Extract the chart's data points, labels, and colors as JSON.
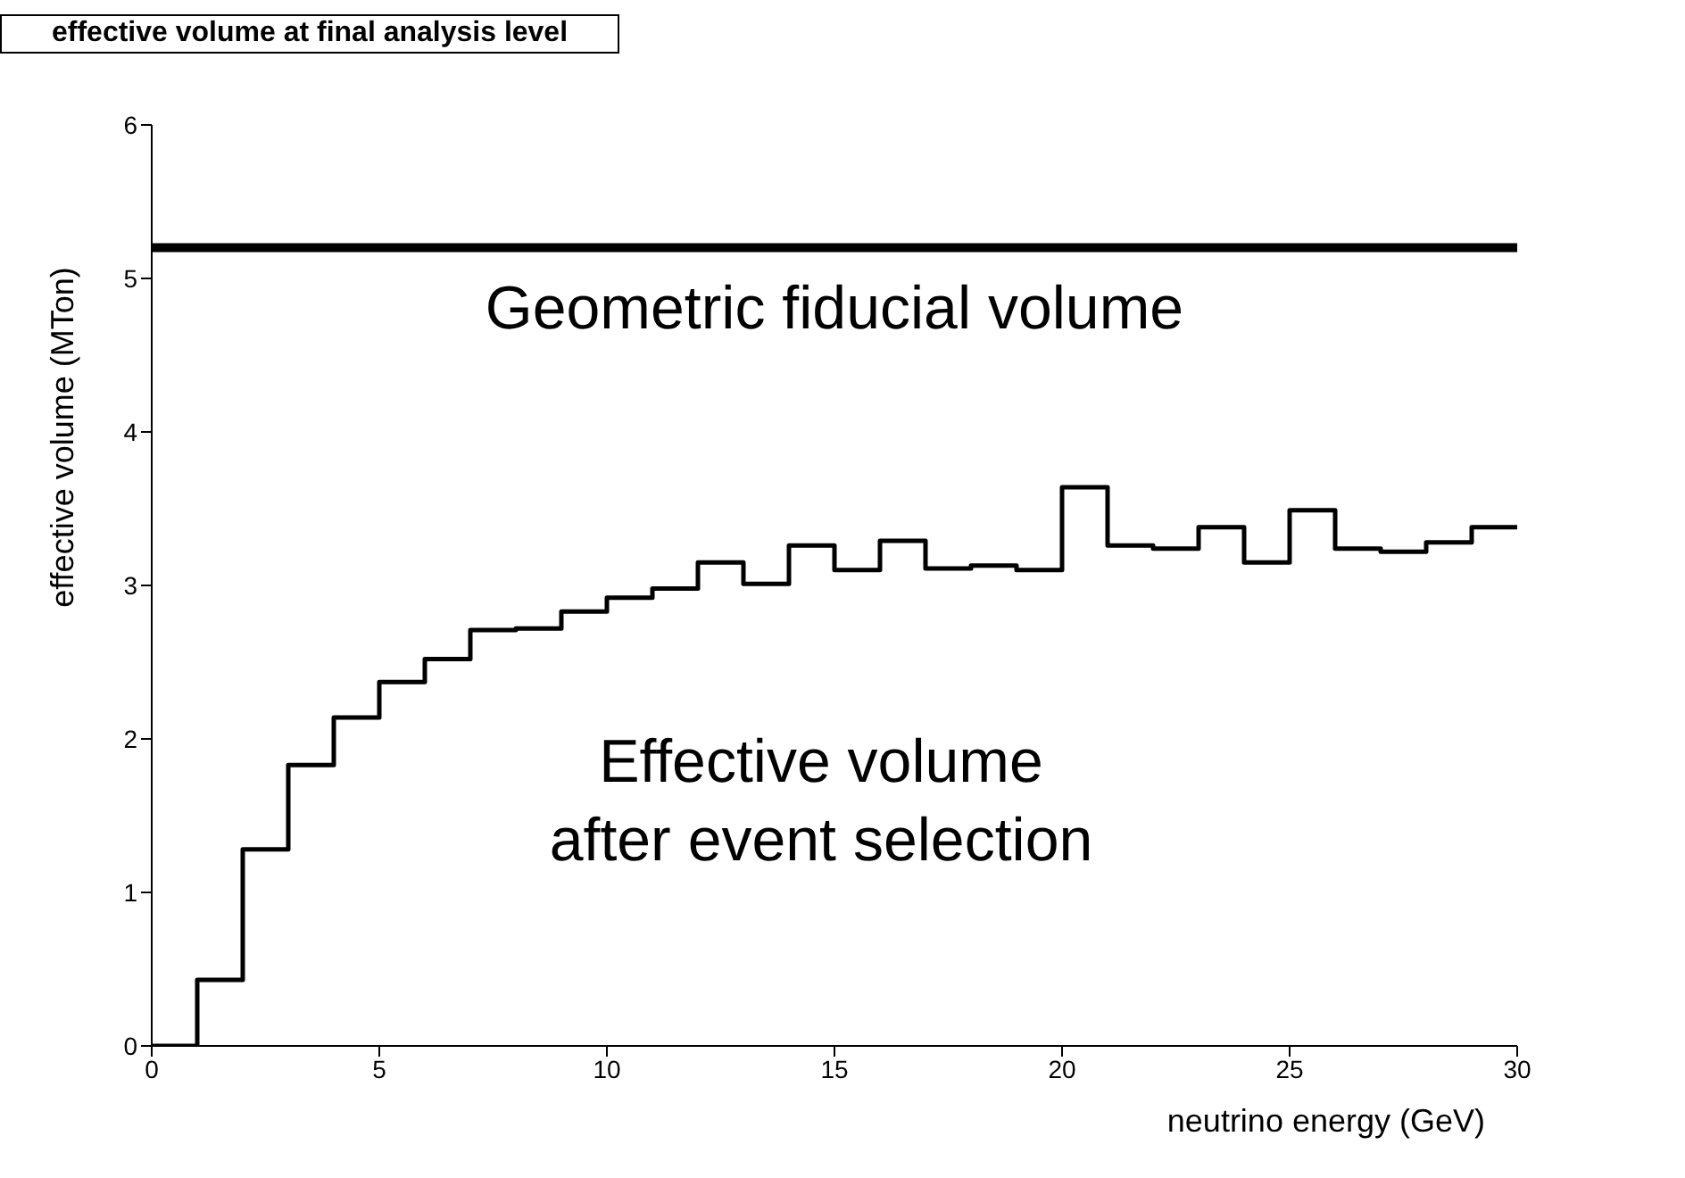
{
  "chart_data": {
    "type": "histogram",
    "title": "effective volume at final analysis level",
    "xlabel": "neutrino energy (GeV)",
    "ylabel": "effective volume (MTon)",
    "bins": [
      0,
      1,
      2,
      3,
      4,
      5,
      6,
      7,
      8,
      9,
      10,
      11,
      12,
      13,
      14,
      15,
      16,
      17,
      18,
      19,
      20,
      21,
      22,
      23,
      24,
      25,
      26,
      27,
      28,
      29,
      30
    ],
    "values": [
      0,
      0.43,
      1.28,
      1.83,
      2.14,
      2.37,
      2.52,
      2.71,
      2.72,
      2.83,
      2.92,
      2.98,
      3.15,
      3.01,
      3.26,
      3.1,
      3.29,
      3.11,
      3.13,
      3.1,
      3.64,
      3.26,
      3.24,
      3.38,
      3.15,
      3.49,
      3.24,
      3.22,
      3.28,
      3.38
    ],
    "color": "#000000",
    "xlim": [
      0,
      30
    ],
    "xticks": [
      0,
      5,
      10,
      15,
      20,
      25,
      30
    ],
    "ylim": [
      0,
      6
    ],
    "yticks": [
      0,
      1,
      2,
      3,
      4,
      5,
      6
    ],
    "ref_lines": [
      {
        "axis": "y",
        "value": 5.2,
        "label": "Geometric fiducial volume",
        "color": "#000000"
      }
    ],
    "annotations": [
      "Effective volume\n after event selection"
    ]
  }
}
